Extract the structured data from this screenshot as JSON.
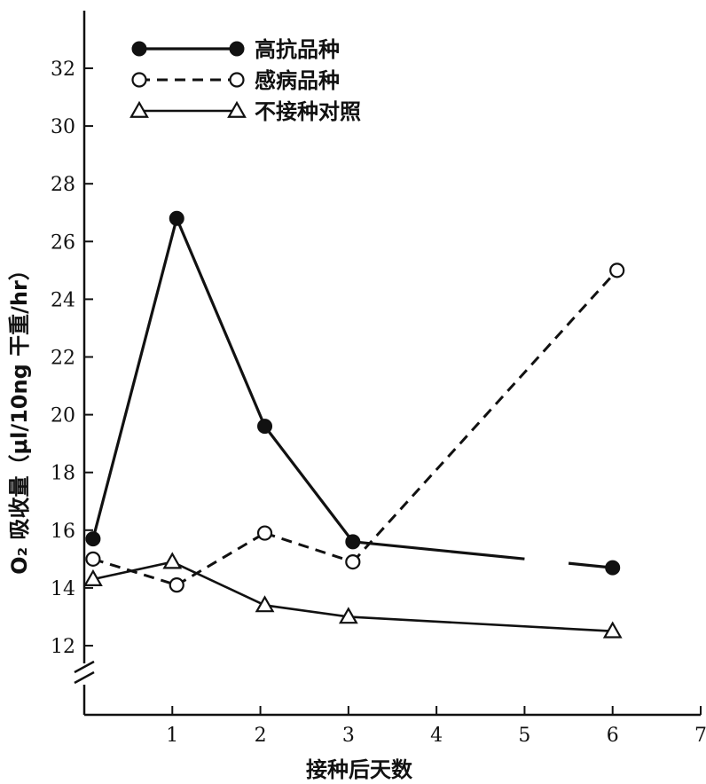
{
  "chart_data": {
    "type": "line",
    "xlabel": "接种后天数",
    "ylabel": "O₂ 吸收量（μl/10ng 干重/hr）",
    "xlim": [
      0,
      7
    ],
    "ylim": [
      11.5,
      33.5
    ],
    "x_ticks": [
      1,
      2,
      3,
      4,
      5,
      6,
      7
    ],
    "y_ticks": [
      12,
      14,
      16,
      18,
      20,
      22,
      24,
      26,
      28,
      30,
      32
    ],
    "axis_break": "y",
    "grid": false,
    "legend_position": "top-left",
    "series": [
      {
        "name": "高抗品种",
        "marker": "filled-circle",
        "line": "solid",
        "x": [
          0.1,
          1.05,
          2.05,
          3.05,
          6.0
        ],
        "y": [
          15.7,
          26.8,
          19.6,
          15.6,
          14.7
        ],
        "gap_between": [
          3.05,
          6.0
        ],
        "gap": [
          5.0,
          5.5
        ]
      },
      {
        "name": "感病品种",
        "marker": "open-circle",
        "line": "dashed",
        "x": [
          0.1,
          1.05,
          2.05,
          3.05,
          6.05
        ],
        "y": [
          15.0,
          14.1,
          15.9,
          14.9,
          25.0
        ]
      },
      {
        "name": "不接种对照",
        "marker": "open-triangle",
        "line": "solid-thin",
        "x": [
          0.1,
          1.0,
          2.05,
          3.0,
          6.0
        ],
        "y": [
          14.3,
          14.9,
          13.4,
          13.0,
          12.5
        ]
      }
    ]
  }
}
